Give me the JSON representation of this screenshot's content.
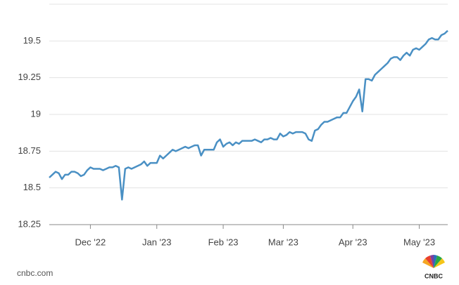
{
  "chart_data": {
    "type": "line",
    "categories": [
      null,
      null,
      null,
      null,
      null,
      null,
      null,
      null,
      null,
      null,
      null,
      null,
      null,
      "Dec '22",
      null,
      null,
      null,
      null,
      null,
      null,
      null,
      null,
      null,
      null,
      null,
      null,
      null,
      null,
      null,
      null,
      null,
      null,
      null,
      null,
      "Jan '23",
      null,
      null,
      null,
      null,
      null,
      null,
      null,
      null,
      null,
      null,
      null,
      null,
      null,
      null,
      null,
      null,
      null,
      null,
      null,
      null,
      "Feb '23",
      null,
      null,
      null,
      null,
      null,
      null,
      null,
      null,
      null,
      null,
      null,
      null,
      null,
      null,
      null,
      null,
      null,
      null,
      "Mar '23",
      null,
      null,
      null,
      null,
      null,
      null,
      null,
      null,
      null,
      null,
      null,
      null,
      null,
      null,
      null,
      null,
      null,
      null,
      null,
      null,
      null,
      "Apr '23",
      null,
      null,
      null,
      null,
      null,
      null,
      null,
      null,
      null,
      null,
      null,
      null,
      null,
      null,
      null,
      null,
      null,
      null,
      null,
      null,
      "May '23",
      null,
      null,
      null,
      null,
      null,
      null,
      null,
      null,
      null
    ],
    "values": [
      18.57,
      18.59,
      18.61,
      18.6,
      18.56,
      18.59,
      18.59,
      18.61,
      18.61,
      18.6,
      18.58,
      18.59,
      18.62,
      18.64,
      18.63,
      18.63,
      18.63,
      18.62,
      18.63,
      18.64,
      18.64,
      18.65,
      18.64,
      18.42,
      18.63,
      18.64,
      18.63,
      18.64,
      18.65,
      18.66,
      18.68,
      18.65,
      18.67,
      18.67,
      18.67,
      18.72,
      18.7,
      18.72,
      18.74,
      18.76,
      18.75,
      18.76,
      18.77,
      18.78,
      18.77,
      18.78,
      18.79,
      18.79,
      18.72,
      18.76,
      18.76,
      18.76,
      18.76,
      18.81,
      18.83,
      18.78,
      18.8,
      18.81,
      18.79,
      18.81,
      18.8,
      18.82,
      18.82,
      18.82,
      18.82,
      18.83,
      18.82,
      18.81,
      18.83,
      18.83,
      18.84,
      18.83,
      18.83,
      18.87,
      18.85,
      18.86,
      18.88,
      18.87,
      18.88,
      18.88,
      18.88,
      18.87,
      18.83,
      18.82,
      18.89,
      18.9,
      18.93,
      18.95,
      18.95,
      18.96,
      18.97,
      18.98,
      18.98,
      19.01,
      19.01,
      19.05,
      19.09,
      19.12,
      19.17,
      19.02,
      19.24,
      19.24,
      19.23,
      19.27,
      19.29,
      19.31,
      19.33,
      19.35,
      19.38,
      19.39,
      19.39,
      19.37,
      19.4,
      19.42,
      19.4,
      19.44,
      19.45,
      19.44,
      19.46,
      19.48,
      19.51,
      19.52,
      19.51,
      19.51,
      19.54,
      19.55,
      19.57
    ],
    "color": "#4a90c4",
    "ylim": [
      18.25,
      19.75
    ],
    "yticks": [
      18.25,
      18.5,
      18.75,
      19,
      19.25,
      19.5
    ],
    "grid": true,
    "source": "cnbc.com",
    "logo": "CNBC"
  }
}
